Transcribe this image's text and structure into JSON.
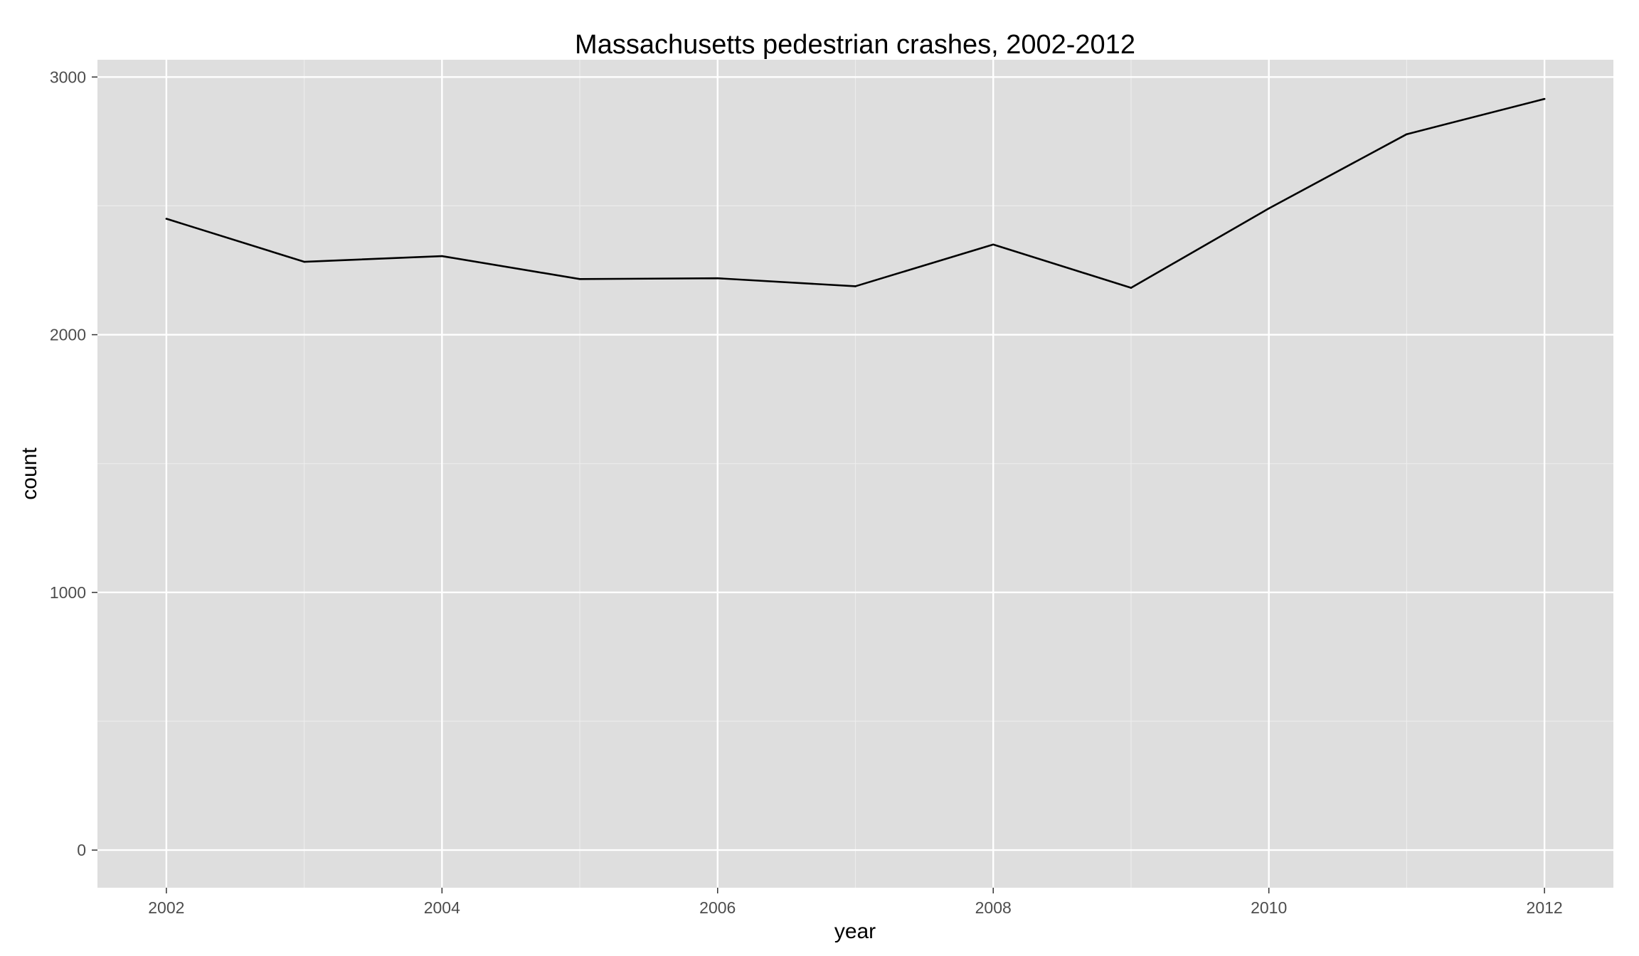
{
  "colors": {
    "panel_background": "#dedede",
    "grid_major": "#ffffff",
    "grid_minor": "#ececec",
    "line": "#000000",
    "tick_text": "#4d4d4d"
  },
  "chart_data": {
    "type": "line",
    "title": "Massachusetts pedestrian crashes, 2002-2012",
    "xlabel": "year",
    "ylabel": "count",
    "x": [
      2002,
      2003,
      2004,
      2005,
      2006,
      2007,
      2008,
      2009,
      2010,
      2011,
      2012
    ],
    "series": [
      {
        "values": [
          2450,
          2283,
          2305,
          2216,
          2219,
          2188,
          2350,
          2182,
          2490,
          2778,
          2915
        ]
      }
    ],
    "xlim": [
      2001.5,
      2012.5
    ],
    "ylim": [
      -146,
      3067
    ],
    "x_ticks": [
      "2002",
      "2004",
      "2006",
      "2008",
      "2010",
      "2012"
    ],
    "y_ticks": [
      "0",
      "1000",
      "2000",
      "3000"
    ],
    "grid": true,
    "legend": "none"
  }
}
